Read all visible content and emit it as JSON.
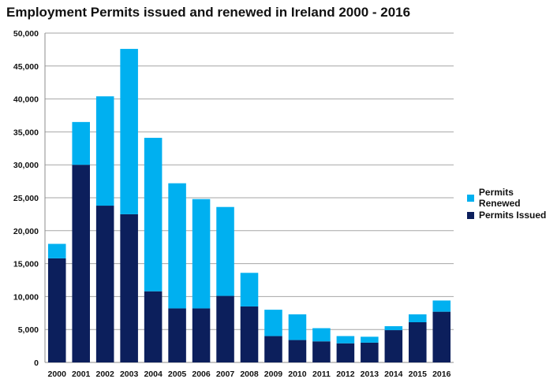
{
  "chart_data": {
    "type": "bar",
    "stacked": true,
    "title": "Employment Permits issued and renewed in Ireland 2000 - 2016",
    "xlabel": "",
    "ylabel": "",
    "ylim": [
      0,
      50000
    ],
    "yticks": [
      "0",
      "5,000",
      "10,000",
      "15,000",
      "20,000",
      "25,000",
      "30,000",
      "35,000",
      "40,000",
      "45,000",
      "50,000"
    ],
    "grid": true,
    "legend_position": "right",
    "categories": [
      "2000",
      "2001",
      "2002",
      "2003",
      "2004",
      "2005",
      "2006",
      "2007",
      "2008",
      "2009",
      "2010",
      "2011",
      "2012",
      "2013",
      "2014",
      "2015",
      "2016"
    ],
    "series": [
      {
        "name": "Permits Issued",
        "color": "#0c1f5c",
        "values": [
          15800,
          30000,
          23800,
          22500,
          10800,
          8200,
          8200,
          10100,
          8500,
          4000,
          3400,
          3200,
          2900,
          3000,
          4900,
          6100,
          7700
        ]
      },
      {
        "name": "Permits Renewed",
        "color": "#00b0f0",
        "values": [
          2200,
          6500,
          16600,
          25100,
          23300,
          19000,
          16600,
          13500,
          5100,
          4000,
          3900,
          2000,
          1100,
          900,
          600,
          1200,
          1700
        ]
      }
    ],
    "legend": [
      {
        "label": "Permits Renewed",
        "color": "#00b0f0"
      },
      {
        "label": "Permits Issued",
        "color": "#0c1f5c"
      }
    ]
  }
}
